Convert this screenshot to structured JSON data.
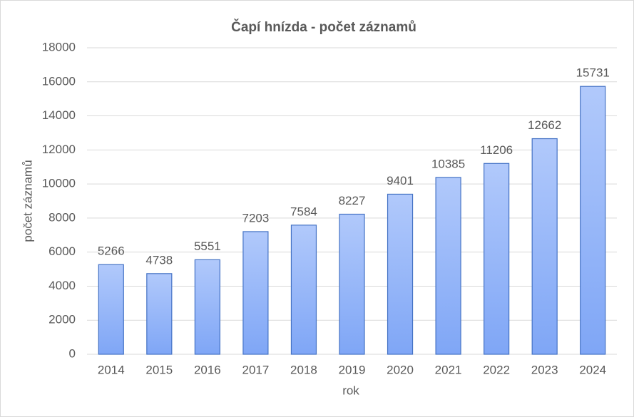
{
  "chart_data": {
    "type": "bar",
    "title": "Čapí hnízda - počet záznamů",
    "x_label": "rok",
    "y_label": "počet záznamů",
    "categories": [
      "2014",
      "2015",
      "2016",
      "2017",
      "2018",
      "2019",
      "2020",
      "2021",
      "2022",
      "2023",
      "2024"
    ],
    "values": [
      5266,
      4738,
      5551,
      7203,
      7584,
      8227,
      9401,
      10385,
      11206,
      12662,
      15731
    ],
    "color": "#4472c4",
    "ylim": [
      0,
      18000
    ],
    "yticks": [
      0,
      2000,
      4000,
      6000,
      8000,
      10000,
      12000,
      14000,
      16000,
      18000
    ],
    "grid": true
  }
}
